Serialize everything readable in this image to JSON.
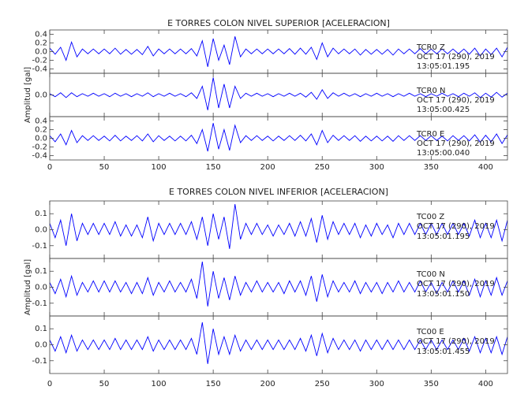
{
  "chart_data": [
    {
      "type": "line",
      "title": "E TORRES COLON NIVEL SUPERIOR [ACELERACION]",
      "ylabel": "Amplitud [gal]",
      "x": [
        0,
        5,
        10,
        15,
        20,
        25,
        30,
        35,
        40,
        45,
        50,
        55,
        60,
        65,
        70,
        75,
        80,
        85,
        90,
        95,
        100,
        105,
        110,
        115,
        120,
        125,
        130,
        135,
        140,
        145,
        150,
        155,
        160,
        165,
        170,
        175,
        180,
        185,
        190,
        195,
        200,
        205,
        210,
        215,
        220,
        225,
        230,
        235,
        240,
        245,
        250,
        255,
        260,
        265,
        270,
        275,
        280,
        285,
        290,
        295,
        300,
        305,
        310,
        315,
        320,
        325,
        330,
        335,
        340,
        345,
        350,
        355,
        360,
        365,
        370,
        375,
        380,
        385,
        390,
        395,
        400,
        405,
        410,
        415,
        420
      ],
      "xlim": [
        0,
        420
      ],
      "xticks": [
        0,
        50,
        100,
        150,
        200,
        250,
        300,
        350,
        400
      ],
      "panels": [
        {
          "ylim": [
            -0.5,
            0.5
          ],
          "yticks": [
            -0.4,
            -0.2,
            {
              "value": 0,
              "label": "0.0"
            },
            0.2,
            0.4
          ],
          "annotations": [
            "TCR0   Z",
            "OCT 17 (290), 2019",
            "13:05:01.195"
          ],
          "series": [
            {
              "color": "#0000ff",
              "values": [
                0.08,
                -0.06,
                0.1,
                -0.2,
                0.22,
                -0.12,
                0.06,
                -0.05,
                0.06,
                -0.05,
                0.06,
                -0.05,
                0.08,
                -0.06,
                0.05,
                -0.06,
                0.05,
                -0.07,
                0.12,
                -0.1,
                0.06,
                -0.05,
                0.06,
                -0.05,
                0.06,
                -0.05,
                0.07,
                -0.1,
                0.25,
                -0.35,
                0.3,
                -0.2,
                0.15,
                -0.3,
                0.35,
                -0.12,
                0.06,
                -0.05,
                0.06,
                -0.05,
                0.06,
                -0.05,
                0.06,
                -0.05,
                0.07,
                -0.06,
                0.08,
                -0.06,
                0.1,
                -0.18,
                0.2,
                -0.12,
                0.08,
                -0.05,
                0.06,
                -0.05,
                0.06,
                -0.08,
                0.05,
                -0.06,
                0.05,
                -0.06,
                0.05,
                -0.08,
                0.06,
                -0.05,
                0.06,
                -0.05,
                0.07,
                -0.05,
                0.06,
                -0.05,
                0.06,
                -0.05,
                0.06,
                -0.05,
                0.06,
                -0.06,
                0.08,
                -0.1,
                0.06,
                -0.07,
                0.08,
                -0.12,
                0.1
              ]
            }
          ]
        },
        {
          "ylim": [
            -0.5,
            0.5
          ],
          "yticks": [
            {
              "value": 0,
              "label": "0.0"
            }
          ],
          "annotations": [
            "TCR0   N",
            "OCT 17 (290), 2019",
            "13:05:00.425"
          ],
          "series": [
            {
              "color": "#0000ff",
              "values": [
                0.03,
                -0.04,
                0.05,
                -0.06,
                0.05,
                -0.04,
                0.03,
                -0.03,
                0.04,
                -0.03,
                0.03,
                -0.04,
                0.04,
                -0.03,
                0.03,
                -0.04,
                0.03,
                -0.03,
                0.05,
                -0.04,
                0.03,
                -0.03,
                0.04,
                -0.03,
                0.03,
                -0.04,
                0.05,
                -0.08,
                0.2,
                -0.35,
                0.4,
                -0.3,
                0.25,
                -0.3,
                0.2,
                -0.08,
                0.04,
                -0.03,
                0.04,
                -0.03,
                0.03,
                -0.04,
                0.03,
                -0.03,
                0.04,
                -0.03,
                0.04,
                -0.05,
                0.06,
                -0.1,
                0.12,
                -0.08,
                0.05,
                -0.03,
                0.04,
                -0.03,
                0.03,
                -0.04,
                0.03,
                -0.03,
                0.04,
                -0.03,
                0.03,
                -0.04,
                0.03,
                -0.03,
                0.04,
                -0.03,
                0.03,
                -0.04,
                0.03,
                -0.03,
                0.04,
                -0.03,
                0.03,
                -0.04,
                0.04,
                -0.03,
                0.05,
                -0.06,
                0.04,
                -0.05,
                0.06,
                -0.05,
                0.04
              ]
            }
          ]
        },
        {
          "ylim": [
            -0.5,
            0.5
          ],
          "yticks": [
            -0.4,
            -0.2,
            {
              "value": 0,
              "label": "0.0"
            },
            0.2,
            0.4
          ],
          "annotations": [
            "TCR0   E",
            "OCT 17 (290), 2019",
            "13:05:00.040"
          ],
          "series": [
            {
              "color": "#0000ff",
              "values": [
                0.06,
                -0.08,
                0.1,
                -0.15,
                0.18,
                -0.1,
                0.06,
                -0.05,
                0.06,
                -0.05,
                0.05,
                -0.06,
                0.07,
                -0.06,
                0.05,
                -0.05,
                0.06,
                -0.06,
                0.1,
                -0.08,
                0.06,
                -0.05,
                0.05,
                -0.06,
                0.05,
                -0.06,
                0.07,
                -0.12,
                0.2,
                -0.3,
                0.35,
                -0.25,
                0.2,
                -0.28,
                0.3,
                -0.1,
                0.06,
                -0.05,
                0.06,
                -0.05,
                0.05,
                -0.06,
                0.05,
                -0.05,
                0.06,
                -0.05,
                0.07,
                -0.06,
                0.1,
                -0.15,
                0.18,
                -0.1,
                0.07,
                -0.05,
                0.06,
                -0.05,
                0.06,
                -0.07,
                0.05,
                -0.06,
                0.05,
                -0.06,
                0.05,
                -0.07,
                0.06,
                -0.05,
                0.06,
                -0.05,
                0.06,
                -0.05,
                0.06,
                -0.05,
                0.05,
                -0.06,
                0.06,
                -0.05,
                0.06,
                -0.06,
                0.08,
                -0.09,
                0.07,
                -0.08,
                0.1,
                -0.12,
                0.08
              ]
            }
          ]
        }
      ]
    },
    {
      "type": "line",
      "title": "E TORRES COLON NIVEL INFERIOR [ACELERACION]",
      "ylabel": "Amplitud [gal]",
      "x": [
        0,
        5,
        10,
        15,
        20,
        25,
        30,
        35,
        40,
        45,
        50,
        55,
        60,
        65,
        70,
        75,
        80,
        85,
        90,
        95,
        100,
        105,
        110,
        115,
        120,
        125,
        130,
        135,
        140,
        145,
        150,
        155,
        160,
        165,
        170,
        175,
        180,
        185,
        190,
        195,
        200,
        205,
        210,
        215,
        220,
        225,
        230,
        235,
        240,
        245,
        250,
        255,
        260,
        265,
        270,
        275,
        280,
        285,
        290,
        295,
        300,
        305,
        310,
        315,
        320,
        325,
        330,
        335,
        340,
        345,
        350,
        355,
        360,
        365,
        370,
        375,
        380,
        385,
        390,
        395,
        400,
        405,
        410,
        415,
        420
      ],
      "xlim": [
        0,
        420
      ],
      "xticks": [
        0,
        50,
        100,
        150,
        200,
        250,
        300,
        350,
        400
      ],
      "panels": [
        {
          "ylim": [
            -0.18,
            0.18
          ],
          "yticks": [
            -0.1,
            {
              "value": 0,
              "label": "0.0"
            },
            0.1
          ],
          "annotations": [
            "TC00   Z",
            "OCT 17 (290), 2019",
            "13:05:01.195"
          ],
          "series": [
            {
              "color": "#0000ff",
              "values": [
                0.04,
                -0.05,
                0.06,
                -0.1,
                0.1,
                -0.07,
                0.04,
                -0.03,
                0.04,
                -0.03,
                0.04,
                -0.03,
                0.05,
                -0.04,
                0.03,
                -0.04,
                0.03,
                -0.05,
                0.08,
                -0.07,
                0.04,
                -0.03,
                0.04,
                -0.03,
                0.04,
                -0.03,
                0.05,
                -0.06,
                0.08,
                -0.1,
                0.1,
                -0.06,
                0.08,
                -0.12,
                0.16,
                -0.06,
                0.04,
                -0.03,
                0.04,
                -0.03,
                0.03,
                -0.04,
                0.03,
                -0.03,
                0.04,
                -0.04,
                0.05,
                -0.04,
                0.07,
                -0.08,
                0.09,
                -0.06,
                0.05,
                -0.03,
                0.04,
                -0.03,
                0.04,
                -0.05,
                0.03,
                -0.04,
                0.04,
                -0.03,
                0.03,
                -0.05,
                0.04,
                -0.03,
                0.04,
                -0.03,
                0.04,
                -0.03,
                0.04,
                -0.03,
                0.04,
                -0.03,
                0.04,
                -0.03,
                0.04,
                -0.04,
                0.06,
                -0.05,
                0.04,
                -0.05,
                0.06,
                -0.07,
                0.06
              ]
            }
          ]
        },
        {
          "ylim": [
            -0.18,
            0.18
          ],
          "yticks": [
            -0.1,
            {
              "value": 0,
              "label": "0.0"
            },
            0.1
          ],
          "annotations": [
            "TC00   N",
            "OCT 17 (290), 2019",
            "13:05:01.150"
          ],
          "series": [
            {
              "color": "#0000ff",
              "values": [
                0.03,
                -0.04,
                0.05,
                -0.06,
                0.07,
                -0.05,
                0.03,
                -0.03,
                0.04,
                -0.03,
                0.04,
                -0.03,
                0.04,
                -0.03,
                0.03,
                -0.04,
                0.03,
                -0.04,
                0.06,
                -0.05,
                0.03,
                -0.03,
                0.04,
                -0.03,
                0.03,
                -0.03,
                0.05,
                -0.07,
                0.16,
                -0.12,
                0.1,
                -0.07,
                0.06,
                -0.08,
                0.07,
                -0.05,
                0.03,
                -0.03,
                0.04,
                -0.03,
                0.03,
                -0.03,
                0.03,
                -0.04,
                0.04,
                -0.03,
                0.04,
                -0.05,
                0.07,
                -0.09,
                0.08,
                -0.06,
                0.04,
                -0.03,
                0.03,
                -0.03,
                0.04,
                -0.04,
                0.03,
                -0.03,
                0.03,
                -0.04,
                0.03,
                -0.03,
                0.04,
                -0.03,
                0.03,
                -0.03,
                0.04,
                -0.03,
                0.03,
                -0.04,
                0.03,
                -0.03,
                0.04,
                -0.03,
                0.04,
                -0.05,
                0.05,
                -0.06,
                0.04,
                -0.05,
                0.06,
                -0.05,
                0.04
              ]
            }
          ]
        },
        {
          "ylim": [
            -0.18,
            0.18
          ],
          "yticks": [
            -0.1,
            {
              "value": 0,
              "label": "0.0"
            },
            0.1
          ],
          "annotations": [
            "TC00   E",
            "OCT 17 (290), 2019",
            "13:05:01.455"
          ],
          "series": [
            {
              "color": "#0000ff",
              "values": [
                0.03,
                -0.04,
                0.05,
                -0.05,
                0.06,
                -0.04,
                0.03,
                -0.03,
                0.03,
                -0.03,
                0.03,
                -0.03,
                0.04,
                -0.03,
                0.03,
                -0.03,
                0.03,
                -0.03,
                0.05,
                -0.04,
                0.03,
                -0.03,
                0.03,
                -0.03,
                0.03,
                -0.03,
                0.04,
                -0.06,
                0.14,
                -0.12,
                0.1,
                -0.06,
                0.05,
                -0.06,
                0.06,
                -0.04,
                0.03,
                -0.03,
                0.03,
                -0.03,
                0.03,
                -0.03,
                0.03,
                -0.03,
                0.03,
                -0.03,
                0.04,
                -0.04,
                0.06,
                -0.07,
                0.07,
                -0.05,
                0.04,
                -0.03,
                0.03,
                -0.03,
                0.03,
                -0.04,
                0.03,
                -0.03,
                0.03,
                -0.03,
                0.03,
                -0.03,
                0.03,
                -0.03,
                0.03,
                -0.03,
                0.03,
                -0.03,
                0.03,
                -0.03,
                0.03,
                -0.03,
                0.03,
                -0.03,
                0.04,
                -0.04,
                0.05,
                -0.05,
                0.04,
                -0.05,
                0.05,
                -0.06,
                0.05
              ]
            }
          ]
        }
      ]
    }
  ]
}
